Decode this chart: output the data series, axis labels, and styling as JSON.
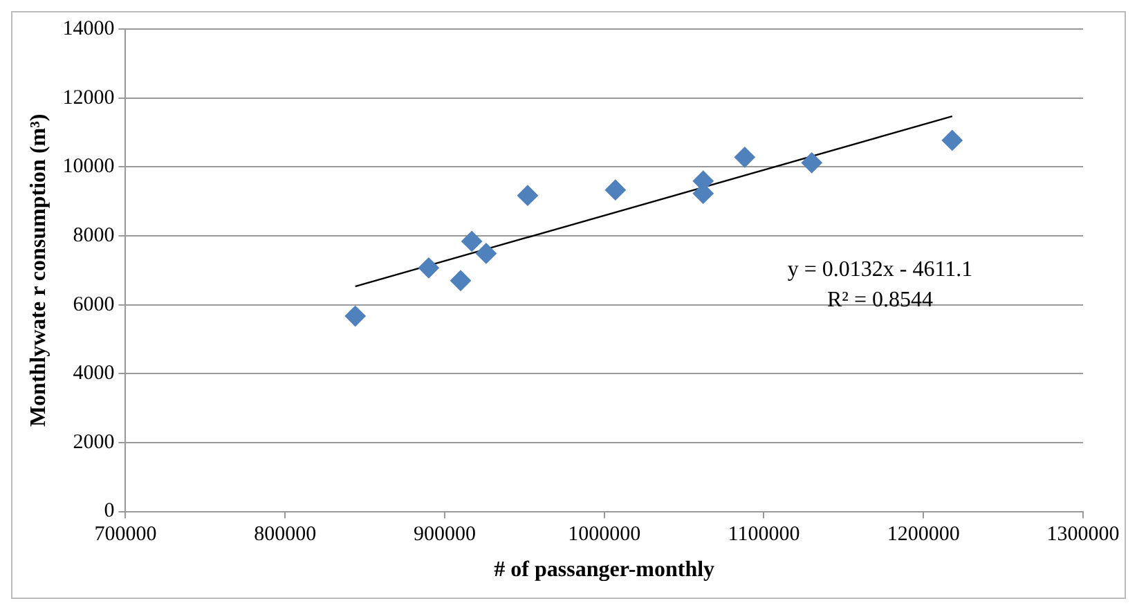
{
  "chart_data": {
    "type": "scatter",
    "xlabel": "# of passanger-monthly",
    "ylabel": "Monthlywate r consumption (m³)",
    "xlim": [
      700000,
      1300000
    ],
    "xticks": [
      700000,
      800000,
      900000,
      1000000,
      1100000,
      1200000,
      1300000
    ],
    "ylim": [
      0,
      14000
    ],
    "yticks": [
      0,
      2000,
      4000,
      6000,
      8000,
      10000,
      12000,
      14000
    ],
    "grid": "y",
    "legend": false,
    "series": [
      {
        "marker": "diamond",
        "color": "#4f81bd",
        "x": [
          844000,
          890000,
          910000,
          917000,
          926000,
          952000,
          1007000,
          1062000,
          1062000,
          1088000,
          1130000,
          1218000
        ],
        "values": [
          5670,
          7070,
          6700,
          7840,
          7490,
          9170,
          9330,
          9590,
          9230,
          10280,
          10120,
          10770
        ]
      },
      {
        "type": "line",
        "marker": "none",
        "color": "#000000",
        "x": [
          844000,
          1218000
        ],
        "values": [
          6530,
          11470
        ]
      }
    ],
    "annotations": [
      "y = 0.0132x - 4611.1",
      "R² = 0.8544"
    ]
  }
}
